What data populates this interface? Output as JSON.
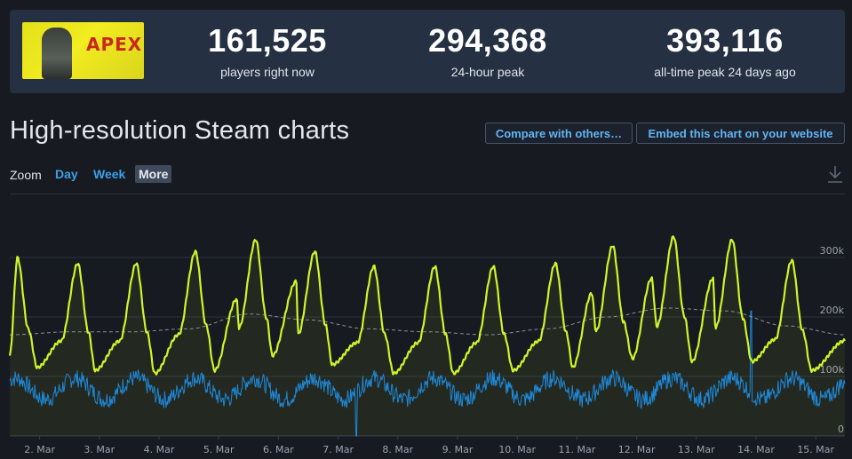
{
  "stats": [
    {
      "value": "161,525",
      "label": "players right now"
    },
    {
      "value": "294,368",
      "label": "24-hour peak"
    },
    {
      "value": "393,116",
      "label": "all-time peak 24 days ago"
    }
  ],
  "game_logo_text": "APEX",
  "page_title": "High-resolution Steam charts",
  "buttons": {
    "compare": "Compare with others…",
    "embed": "Embed this chart on your website"
  },
  "zoom": {
    "label": "Zoom",
    "options": [
      "Day",
      "Week",
      "More"
    ],
    "selected": "More"
  },
  "icons": {
    "download": "download-icon"
  },
  "colors": {
    "players": "#ccf52a",
    "twitch": "#1f87d6",
    "average": "#8a8f96"
  },
  "chart_data": {
    "type": "line",
    "x_range": [
      "1. Mar 12:00",
      "15. Mar 18:00"
    ],
    "x_tick_labels": [
      "2. Mar",
      "3. Mar",
      "4. Mar",
      "5. Mar",
      "6. Mar",
      "7. Mar",
      "8. Mar",
      "9. Mar",
      "10. Mar",
      "11. Mar",
      "12. Mar",
      "13. Mar",
      "14. Mar",
      "15. Mar"
    ],
    "y_tick_labels": [
      "0",
      "100k",
      "200k",
      "300k"
    ],
    "ylim": [
      0,
      345000
    ],
    "grid": true,
    "series": [
      {
        "color": "#ccf52a",
        "daily_peaks": [
          [
            1.63,
            300000
          ],
          [
            2.64,
            290000
          ],
          [
            3.62,
            290000
          ],
          [
            4.61,
            310000
          ],
          [
            5.62,
            330000
          ],
          [
            6.61,
            310000
          ],
          [
            7.6,
            285000
          ],
          [
            8.62,
            285000
          ],
          [
            9.6,
            285000
          ],
          [
            10.64,
            290000
          ],
          [
            11.6,
            320000
          ],
          [
            12.62,
            335000
          ],
          [
            13.6,
            330000
          ],
          [
            14.6,
            295000
          ]
        ],
        "daily_secondary_peaks": [
          [
            5.3,
            230000
          ],
          [
            6.3,
            260000
          ],
          [
            11.25,
            240000
          ],
          [
            12.25,
            265000
          ],
          [
            13.28,
            265000
          ]
        ],
        "daily_lows": [
          [
            1.96,
            115000
          ],
          [
            2.93,
            110000
          ],
          [
            3.93,
            105000
          ],
          [
            4.93,
            110000
          ],
          [
            5.9,
            135000
          ],
          [
            6.9,
            120000
          ],
          [
            7.93,
            105000
          ],
          [
            8.93,
            105000
          ],
          [
            9.93,
            110000
          ],
          [
            10.93,
            115000
          ],
          [
            11.93,
            130000
          ],
          [
            12.93,
            125000
          ],
          [
            13.93,
            125000
          ],
          [
            14.93,
            110000
          ]
        ],
        "end_value": 160000
      },
      {
        "color": "#1f87d6",
        "typical_range": [
          45000,
          110000
        ],
        "spikes": [
          [
            7.3,
            0
          ],
          [
            13.92,
            210000
          ]
        ]
      },
      {
        "color": "#8a8f96",
        "style": "dashed",
        "keyframes": [
          [
            1.5,
            170000
          ],
          [
            2.5,
            175000
          ],
          [
            3.5,
            175000
          ],
          [
            4.5,
            180000
          ],
          [
            5.5,
            205000
          ],
          [
            6.5,
            195000
          ],
          [
            7.5,
            180000
          ],
          [
            8.5,
            175000
          ],
          [
            9.5,
            170000
          ],
          [
            10.5,
            180000
          ],
          [
            11.5,
            200000
          ],
          [
            12.5,
            215000
          ],
          [
            13.5,
            210000
          ],
          [
            14.5,
            185000
          ],
          [
            15.5,
            170000
          ]
        ]
      }
    ]
  }
}
